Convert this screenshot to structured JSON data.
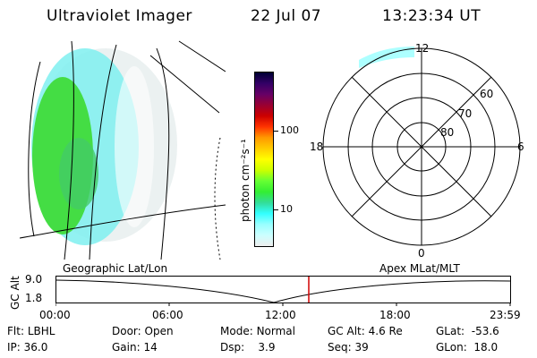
{
  "header": {
    "title": "Ultraviolet Imager",
    "date": "22 Jul 07",
    "time": "13:23:34 UT"
  },
  "colorbar": {
    "unit_label": "photon cm⁻²s⁻¹",
    "ticks": [
      "100",
      "10"
    ],
    "colors": [
      "#000033",
      "#330066",
      "#660066",
      "#990033",
      "#cc0000",
      "#ff3300",
      "#ff9900",
      "#ffcc00",
      "#ffff00",
      "#ccff00",
      "#66ff33",
      "#33ee33",
      "#33dd99",
      "#33ffff",
      "#99ffff",
      "#ccffff",
      "#eeeeee"
    ]
  },
  "polar_plot": {
    "mlt_labels": {
      "top": "12",
      "left": "18",
      "right": "6",
      "bottom": "0"
    },
    "lat_labels": [
      "60",
      "70",
      "80"
    ]
  },
  "orbit_plot": {
    "left_title": "Geographic Lat/Lon",
    "right_title": "Apex  MLat/MLT",
    "y_axis_label": "GC Alt",
    "y_ticks": [
      "9.0",
      "1.8"
    ],
    "x_ticks": [
      "00:00",
      "06:00",
      "12:00",
      "18:00",
      "23:59"
    ],
    "current_time_fraction": 0.557
  },
  "info": {
    "row1": [
      {
        "label": "Flt:",
        "value": "LBHL"
      },
      {
        "label": "Door:",
        "value": "Open"
      },
      {
        "label": "Mode:",
        "value": "Normal"
      },
      {
        "label": "GC Alt:",
        "value": "4.6 Re"
      },
      {
        "label": "GLat:",
        "value": "-53.6"
      }
    ],
    "row2": [
      {
        "label": "IP:",
        "value": "36.0"
      },
      {
        "label": "Gain:",
        "value": "14"
      },
      {
        "label": "Dsp:",
        "value": "3.9"
      },
      {
        "label": "Seq:",
        "value": "39"
      },
      {
        "label": "GLon:",
        "value": "18.0"
      }
    ]
  }
}
